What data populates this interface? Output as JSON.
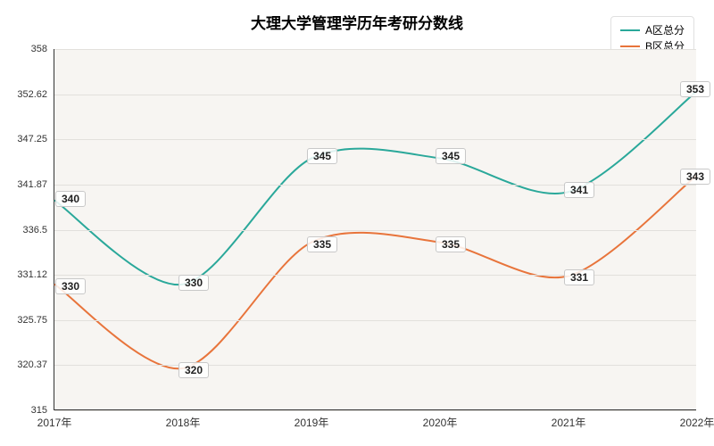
{
  "chart": {
    "type": "line",
    "title": "大理大学管理学历年考研分数线",
    "title_fontsize": 17,
    "background_color": "#ffffff",
    "plot_background": "#f7f5f2",
    "axis_color": "#333333",
    "grid_color": "#e2e0dc",
    "label_fontsize": 12,
    "datalabel_fontsize": 12,
    "x": {
      "categories": [
        "2017年",
        "2018年",
        "2019年",
        "2020年",
        "2021年",
        "2022年"
      ]
    },
    "y": {
      "ylim": [
        315,
        358
      ],
      "ticks": [
        315,
        320.37,
        325.75,
        331.12,
        336.5,
        341.87,
        347.25,
        352.62,
        358
      ]
    },
    "series": [
      {
        "name": "A区总分",
        "color": "#2aa89a",
        "line_width": 2,
        "values": [
          340,
          330,
          345,
          345,
          341,
          353
        ]
      },
      {
        "name": "B区总分",
        "color": "#e8743b",
        "line_width": 2,
        "values": [
          330,
          320,
          335,
          335,
          331,
          343
        ]
      }
    ],
    "legend": {
      "position": "top-right"
    }
  }
}
